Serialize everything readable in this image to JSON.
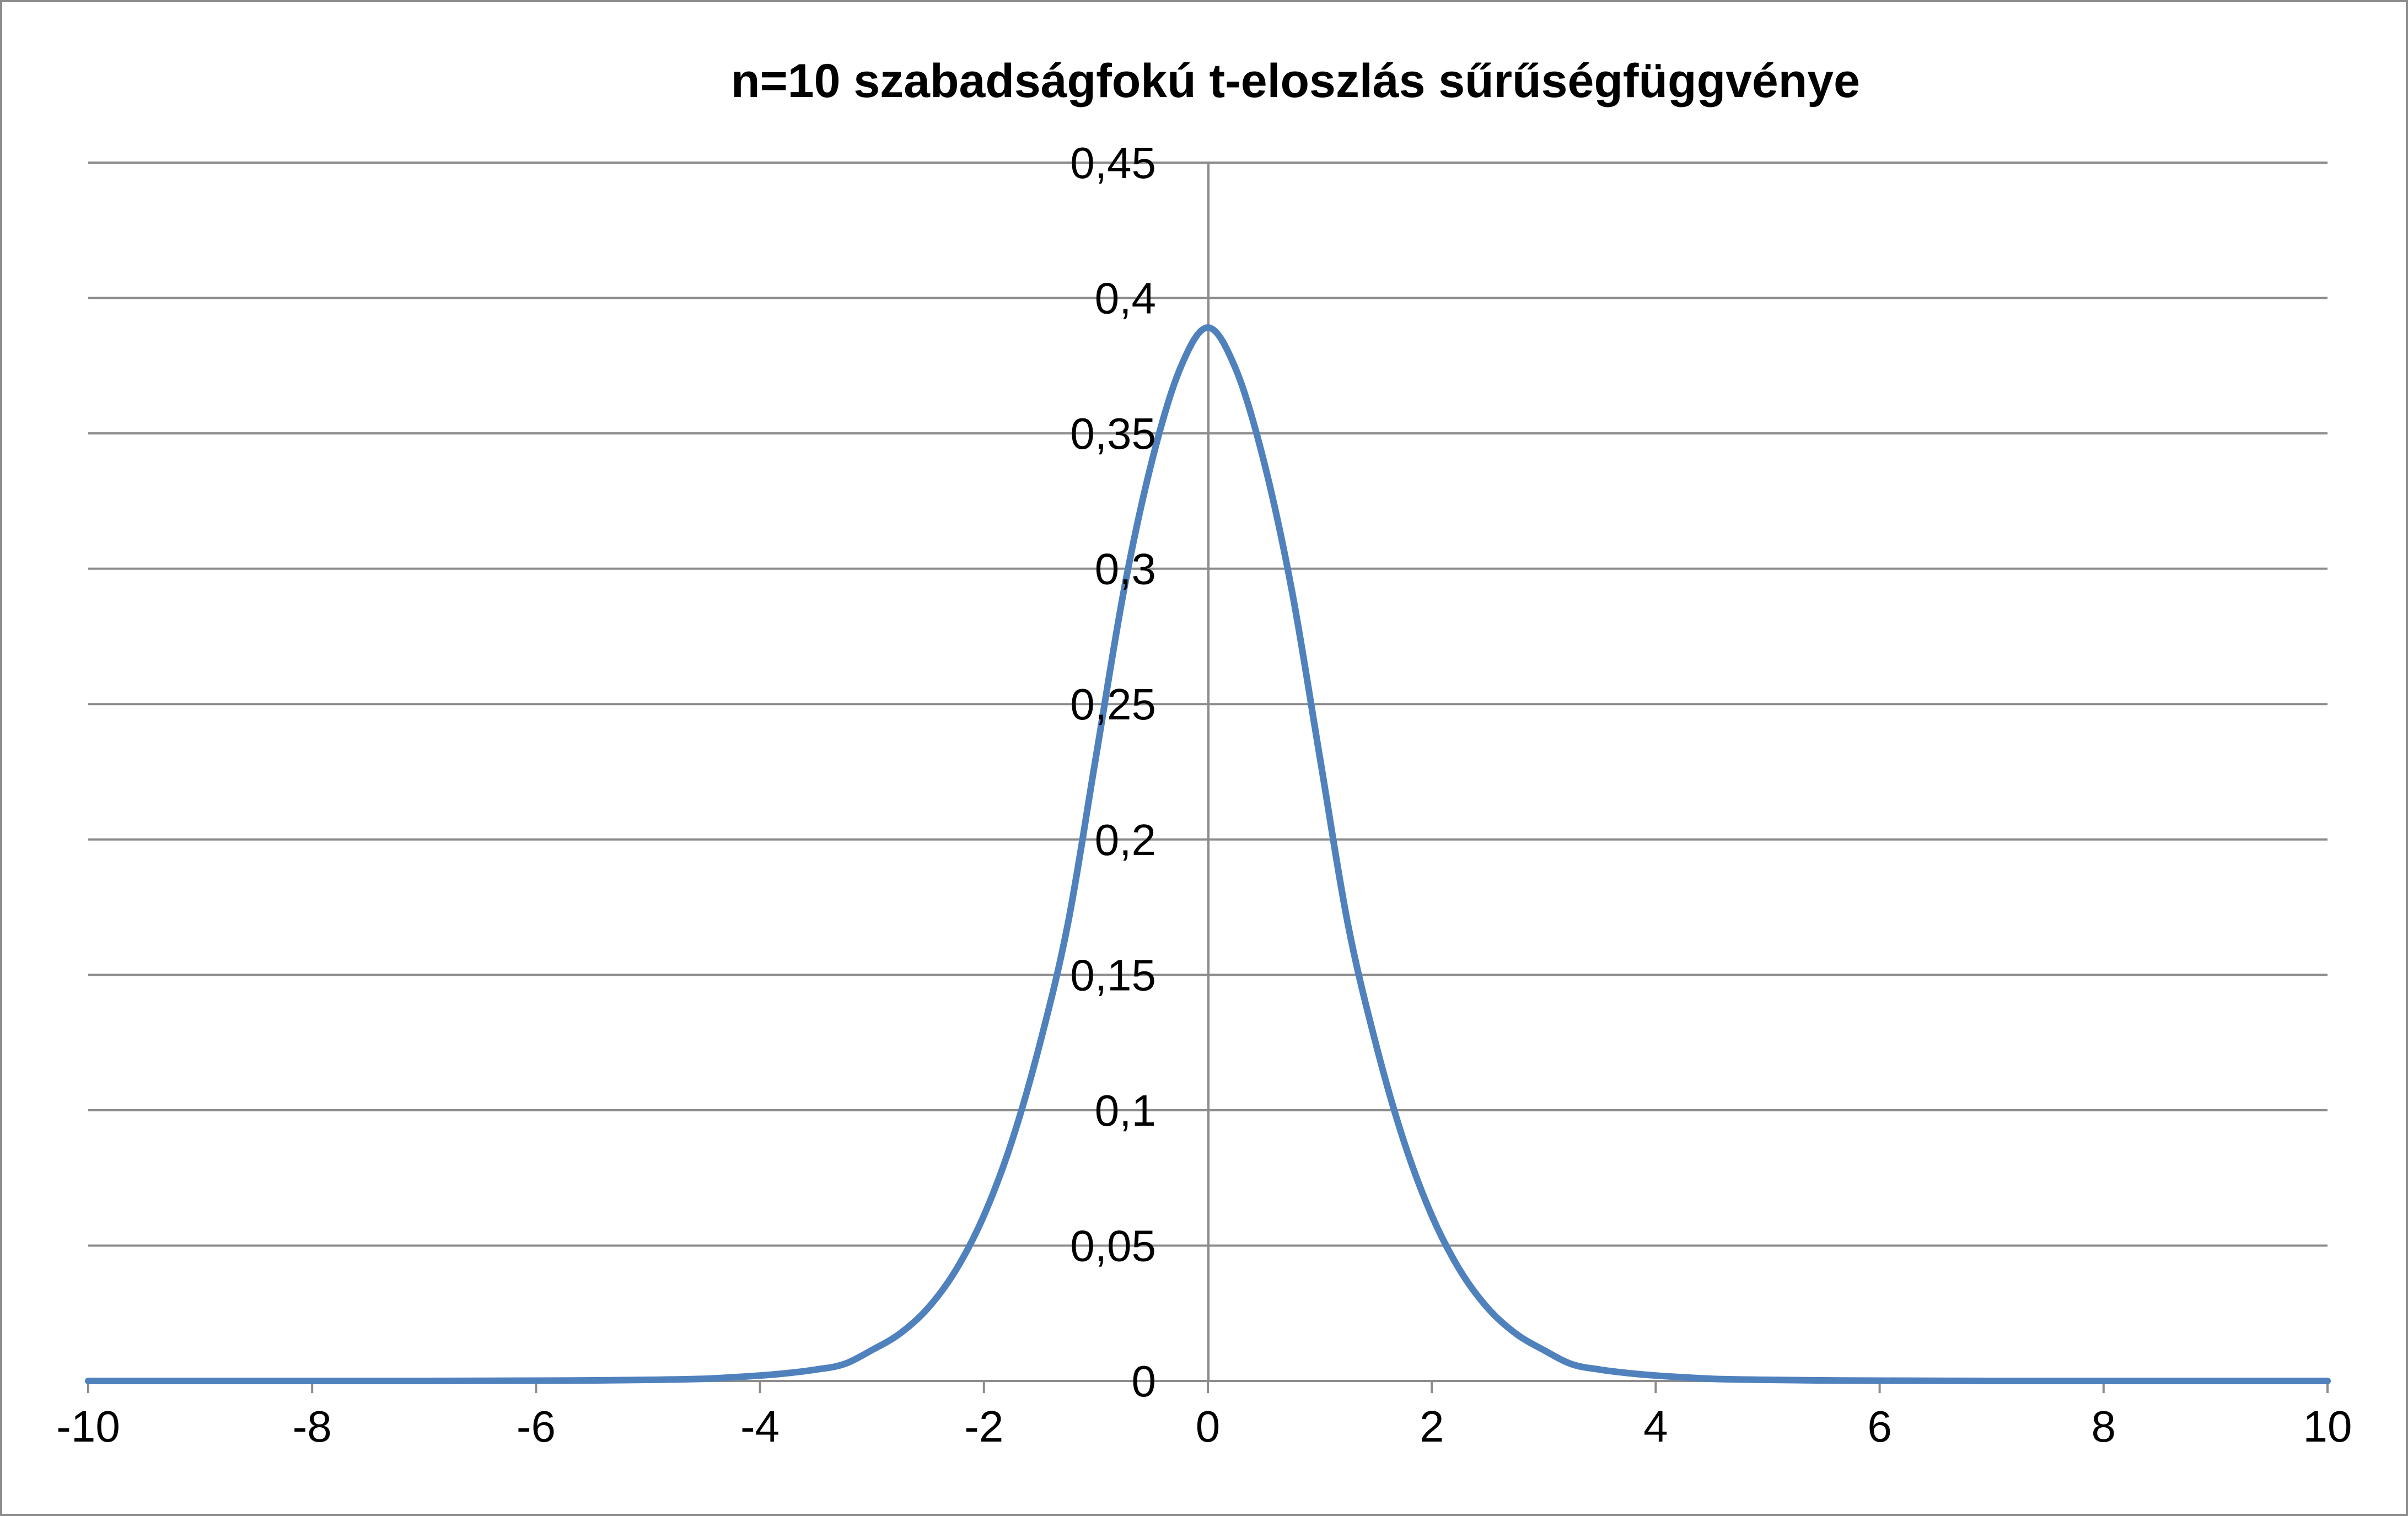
{
  "chart_data": {
    "type": "line",
    "title": "n=10 szabadságfokú t-eloszlás sűrűségfüggvénye",
    "xlabel": "",
    "ylabel": "",
    "xlim": [
      -10,
      10
    ],
    "ylim": [
      0,
      0.45
    ],
    "x_ticks": [
      -10,
      -8,
      -6,
      -4,
      -2,
      0,
      2,
      4,
      6,
      8,
      10
    ],
    "x_tick_labels": [
      "-10",
      "-8",
      "-6",
      "-4",
      "-2",
      "0",
      "2",
      "4",
      "6",
      "8",
      "10"
    ],
    "y_ticks": [
      0,
      0.05,
      0.1,
      0.15,
      0.2,
      0.25,
      0.3,
      0.35,
      0.4,
      0.45
    ],
    "y_tick_labels": [
      "0",
      "0,05",
      "0,1",
      "0,15",
      "0,2",
      "0,25",
      "0,3",
      "0,35",
      "0,4",
      "0,45"
    ],
    "grid": "horizontal",
    "legend": "none",
    "series": [
      {
        "color": "#4f81bd",
        "x": [
          -10,
          -9,
          -8,
          -7,
          -6,
          -5.5,
          -5,
          -4.5,
          -4,
          -3.75,
          -3.5,
          -3.25,
          -3,
          -2.75,
          -2.5,
          -2.25,
          -2,
          -1.75,
          -1.5,
          -1.25,
          -1,
          -0.75,
          -0.5,
          -0.25,
          0,
          0.25,
          0.5,
          0.75,
          1,
          1.25,
          1.5,
          1.75,
          2,
          2.25,
          2.5,
          2.75,
          3,
          3.25,
          3.5,
          3.75,
          4,
          4.5,
          5,
          5.5,
          6,
          7,
          8,
          9,
          10
        ],
        "y": [
          0.0,
          0.0,
          0.0,
          0.0,
          0.0001,
          0.0002,
          0.0004,
          0.0008,
          0.002,
          0.0029,
          0.0042,
          0.0062,
          0.0114,
          0.0175,
          0.0269,
          0.041,
          0.0611,
          0.0886,
          0.1246,
          0.1689,
          0.2304,
          0.292,
          0.3397,
          0.3737,
          0.3891,
          0.3737,
          0.3397,
          0.292,
          0.2304,
          0.1689,
          0.1246,
          0.0886,
          0.0611,
          0.041,
          0.0269,
          0.0175,
          0.0114,
          0.0062,
          0.0042,
          0.0029,
          0.002,
          0.0008,
          0.0004,
          0.0002,
          0.0001,
          0.0,
          0.0,
          0.0,
          0.0
        ]
      }
    ]
  }
}
